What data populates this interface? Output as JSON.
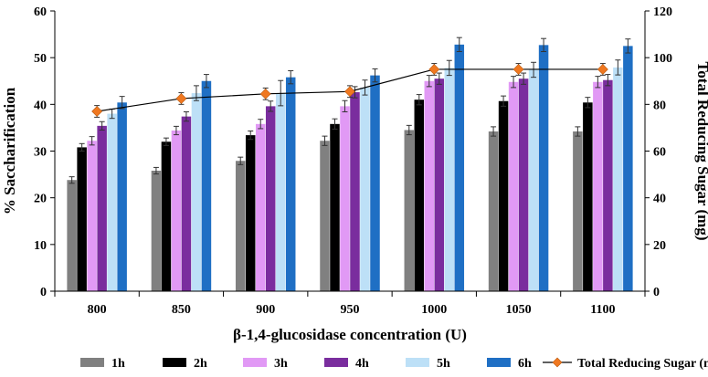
{
  "chart_data": {
    "type": "bar",
    "title": "",
    "xlabel": "β-1,4-glucosidase concentration (U)",
    "ylabel": "% Saccharification",
    "y2label": "Total Reducing Sugar (mg)",
    "categories": [
      "800",
      "850",
      "900",
      "950",
      "1000",
      "1050",
      "1100"
    ],
    "ylim": [
      0,
      60
    ],
    "yticks": [
      0,
      10,
      20,
      30,
      40,
      50,
      60
    ],
    "y2lim": [
      0,
      120
    ],
    "y2ticks": [
      0,
      20,
      40,
      60,
      80,
      100,
      120
    ],
    "series": [
      {
        "name": "1h",
        "color": "#808080",
        "values": [
          23.8,
          25.8,
          27.9,
          32.2,
          34.5,
          34.2,
          34.2
        ],
        "errors": [
          0.7,
          0.7,
          0.8,
          1.0,
          1.0,
          1.0,
          1.0
        ]
      },
      {
        "name": "2h",
        "color": "#000000",
        "values": [
          30.8,
          32.0,
          33.4,
          35.8,
          41.0,
          40.7,
          40.4
        ],
        "errors": [
          0.8,
          0.8,
          0.9,
          1.1,
          1.1,
          1.1,
          1.1
        ]
      },
      {
        "name": "3h",
        "color": "#E199F5",
        "values": [
          32.2,
          34.4,
          35.8,
          39.6,
          45.0,
          44.8,
          44.8
        ],
        "errors": [
          0.9,
          0.9,
          1.0,
          1.2,
          1.2,
          1.2,
          1.2
        ]
      },
      {
        "name": "4h",
        "color": "#7A2D9E",
        "values": [
          35.4,
          37.4,
          39.6,
          42.6,
          45.5,
          45.5,
          45.2
        ],
        "errors": [
          0.9,
          1.0,
          1.1,
          1.2,
          1.2,
          1.2,
          1.2
        ]
      },
      {
        "name": "5h",
        "color": "#BDE0F7",
        "values": [
          38.0,
          42.4,
          42.4,
          43.6,
          47.8,
          47.4,
          47.9
        ],
        "errors": [
          1.0,
          1.6,
          2.7,
          1.6,
          1.6,
          1.6,
          1.6
        ]
      },
      {
        "name": "6h",
        "color": "#1F6FC4",
        "values": [
          40.4,
          45.0,
          45.8,
          46.2,
          52.8,
          52.7,
          52.5
        ],
        "errors": [
          1.3,
          1.4,
          1.4,
          1.4,
          1.5,
          1.4,
          1.5
        ]
      }
    ],
    "line_series": {
      "name": "Total Reducing Sugar (mg)",
      "axis": "right",
      "color": "#000000",
      "marker_color": "#F07820",
      "values": [
        77.0,
        82.5,
        84.5,
        85.5,
        95.0,
        95.0,
        95.0
      ],
      "errors": [
        2.5,
        2.5,
        2.5,
        2.5,
        2.5,
        2.5,
        2.5
      ]
    },
    "legend": {
      "position": "bottom"
    }
  }
}
